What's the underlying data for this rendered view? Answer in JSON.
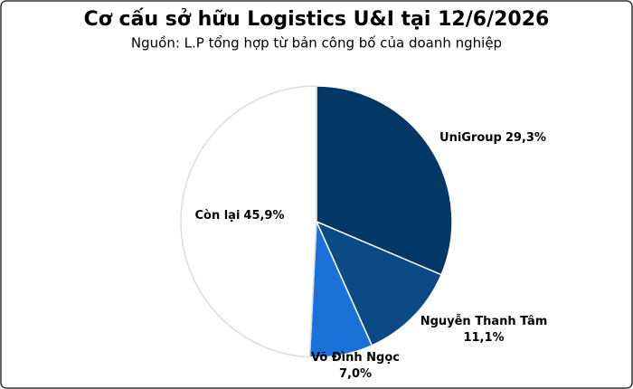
{
  "chart_data": {
    "type": "pie",
    "title": "Cơ cấu sở hữu Logistics U&I tại 12/6/2026",
    "subtitle": "Nguồn: L.P tổng hợp từ bản công bố của doanh nghiệp",
    "categories": [
      "UniGroup",
      "Nguyễn Thanh Tâm",
      "Võ Đình Ngọc",
      "Còn lại"
    ],
    "values": [
      29.3,
      11.1,
      7.0,
      45.9
    ],
    "value_labels": [
      "29,3%",
      "11,1%",
      "7,0%",
      "45,9%"
    ],
    "colors": [
      "#033866",
      "#0c4a86",
      "#1a72d8",
      "#ffffff"
    ]
  }
}
